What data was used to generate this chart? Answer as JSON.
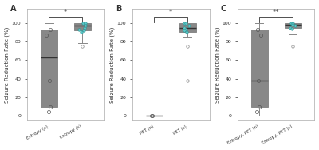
{
  "panels": [
    {
      "label": "A",
      "xlabel_n": "Entropy (n)",
      "xlabel_s": "Entropy (s)",
      "sig": "*",
      "box_n": {
        "median": 63,
        "q1": 10,
        "q3": 93,
        "whislo": 0,
        "whishi": 100,
        "fliers_low": [],
        "fliers_high": [],
        "points": [
          93,
          87,
          38,
          10,
          5
        ],
        "facecolor": "#c9a8e0"
      },
      "box_s": {
        "median": 97,
        "q1": 92,
        "q3": 100,
        "whislo": 78,
        "whishi": 100,
        "fliers_low": [
          75
        ],
        "fliers_high": [],
        "points": [
          100,
          100,
          97,
          95,
          93,
          92,
          90
        ],
        "facecolor": "#5bc8c8"
      }
    },
    {
      "label": "B",
      "xlabel_n": "PET (n)",
      "xlabel_s": "PET (s)",
      "sig": "*",
      "box_n": {
        "median": 0,
        "q1": 0,
        "q3": 0,
        "whislo": 0,
        "whishi": 0,
        "fliers_low": [],
        "fliers_high": [],
        "points": [
          0,
          0
        ],
        "facecolor": "#c9a8e0"
      },
      "box_s": {
        "median": 95,
        "q1": 90,
        "q3": 100,
        "whislo": 85,
        "whishi": 100,
        "fliers_low": [
          75,
          38
        ],
        "fliers_high": [],
        "points": [
          100,
          100,
          97,
          95,
          93,
          92,
          90
        ],
        "facecolor": "#5bc8c8"
      }
    },
    {
      "label": "C",
      "xlabel_n": "Entropy, PET (n)",
      "xlabel_s": "Entropy, PET (s)",
      "sig": "**",
      "box_n": {
        "median": 38,
        "q1": 10,
        "q3": 93,
        "whislo": 0,
        "whishi": 100,
        "fliers_low": [],
        "fliers_high": [],
        "points": [
          93,
          87,
          38,
          10,
          5
        ],
        "facecolor": "#c9a8e0"
      },
      "box_s": {
        "median": 98,
        "q1": 95,
        "q3": 100,
        "whislo": 88,
        "whishi": 100,
        "fliers_low": [
          75
        ],
        "fliers_high": [],
        "points": [
          100,
          100,
          98,
          97,
          95,
          94
        ],
        "facecolor": "#5bc8c8"
      }
    }
  ],
  "ylabel": "Seizure Reduction Rate (%)",
  "ylim": [
    -5,
    115
  ],
  "yticks": [
    0,
    20,
    40,
    60,
    80,
    100
  ],
  "background_color": "#ffffff",
  "panel_bg": "#ffffff",
  "purple_color": "#c9a8e0",
  "teal_color": "#5bc8c8",
  "box_edge_color": "#888888",
  "median_color": "#333333",
  "linewidth": 0.7,
  "flier_size": 2.5,
  "point_size": 3
}
